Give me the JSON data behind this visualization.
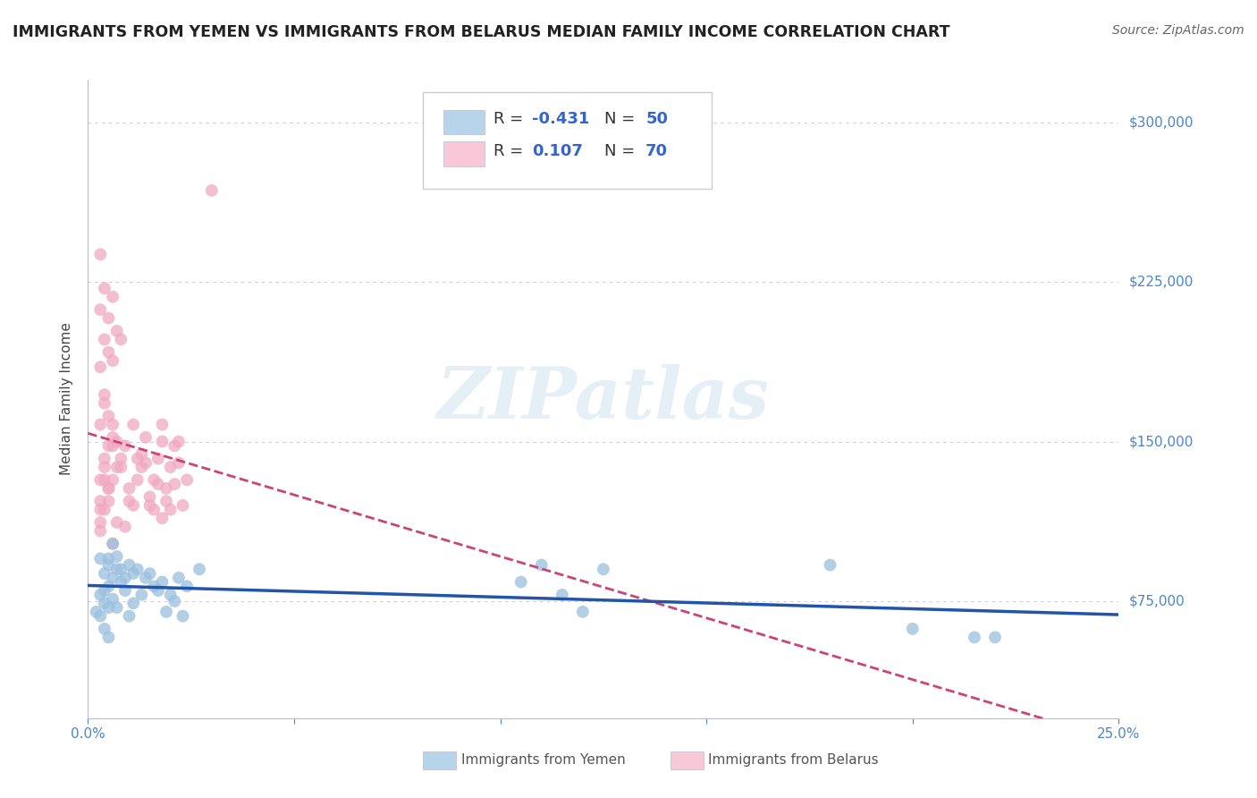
{
  "title": "IMMIGRANTS FROM YEMEN VS IMMIGRANTS FROM BELARUS MEDIAN FAMILY INCOME CORRELATION CHART",
  "source": "Source: ZipAtlas.com",
  "ylabel": "Median Family Income",
  "ytick_labels": [
    "$75,000",
    "$150,000",
    "$225,000",
    "$300,000"
  ],
  "ytick_values": [
    75000,
    150000,
    225000,
    300000
  ],
  "ylim": [
    20000,
    320000
  ],
  "xlim": [
    0.0,
    0.25
  ],
  "legend_r1": "R = -0.431",
  "legend_n1": "N = 50",
  "legend_r2": "R =  0.107",
  "legend_n2": "N = 70",
  "watermark": "ZIPatlas",
  "title_color": "#222222",
  "title_fontsize": 12.5,
  "source_color": "#666666",
  "source_fontsize": 10,
  "axis_color": "#4a86c8",
  "grid_color": "#ccccdd",
  "yemen_color": "#9abfde",
  "belarus_color": "#f0a8c0",
  "yemen_fill": "#b8d4ea",
  "belarus_fill": "#f8c8d8",
  "yemen_line_color": "#2255aa",
  "belarus_line_color": "#cc4477",
  "yemen_points": [
    [
      0.003,
      95000
    ],
    [
      0.004,
      88000
    ],
    [
      0.005,
      92000
    ],
    [
      0.003,
      78000
    ],
    [
      0.006,
      102000
    ],
    [
      0.005,
      82000
    ],
    [
      0.007,
      90000
    ],
    [
      0.004,
      74000
    ],
    [
      0.002,
      70000
    ],
    [
      0.005,
      95000
    ],
    [
      0.008,
      90000
    ],
    [
      0.006,
      86000
    ],
    [
      0.004,
      80000
    ],
    [
      0.003,
      68000
    ],
    [
      0.007,
      96000
    ],
    [
      0.005,
      72000
    ],
    [
      0.009,
      86000
    ],
    [
      0.01,
      92000
    ],
    [
      0.006,
      76000
    ],
    [
      0.004,
      62000
    ],
    [
      0.011,
      88000
    ],
    [
      0.008,
      84000
    ],
    [
      0.012,
      90000
    ],
    [
      0.009,
      80000
    ],
    [
      0.005,
      58000
    ],
    [
      0.007,
      72000
    ],
    [
      0.014,
      86000
    ],
    [
      0.016,
      82000
    ],
    [
      0.013,
      78000
    ],
    [
      0.01,
      68000
    ],
    [
      0.015,
      88000
    ],
    [
      0.018,
      84000
    ],
    [
      0.017,
      80000
    ],
    [
      0.011,
      74000
    ],
    [
      0.02,
      78000
    ],
    [
      0.022,
      86000
    ],
    [
      0.019,
      70000
    ],
    [
      0.024,
      82000
    ],
    [
      0.021,
      75000
    ],
    [
      0.027,
      90000
    ],
    [
      0.023,
      68000
    ],
    [
      0.11,
      92000
    ],
    [
      0.105,
      84000
    ],
    [
      0.115,
      78000
    ],
    [
      0.12,
      70000
    ],
    [
      0.125,
      90000
    ],
    [
      0.18,
      92000
    ],
    [
      0.22,
      58000
    ],
    [
      0.2,
      62000
    ],
    [
      0.215,
      58000
    ]
  ],
  "belarus_points": [
    [
      0.003,
      122000
    ],
    [
      0.003,
      118000
    ],
    [
      0.004,
      172000
    ],
    [
      0.003,
      185000
    ],
    [
      0.004,
      168000
    ],
    [
      0.003,
      158000
    ],
    [
      0.005,
      148000
    ],
    [
      0.004,
      138000
    ],
    [
      0.003,
      132000
    ],
    [
      0.005,
      128000
    ],
    [
      0.006,
      152000
    ],
    [
      0.004,
      142000
    ],
    [
      0.003,
      112000
    ],
    [
      0.005,
      162000
    ],
    [
      0.006,
      148000
    ],
    [
      0.004,
      132000
    ],
    [
      0.007,
      138000
    ],
    [
      0.005,
      122000
    ],
    [
      0.006,
      158000
    ],
    [
      0.003,
      108000
    ],
    [
      0.004,
      118000
    ],
    [
      0.007,
      150000
    ],
    [
      0.005,
      128000
    ],
    [
      0.008,
      142000
    ],
    [
      0.006,
      132000
    ],
    [
      0.007,
      112000
    ],
    [
      0.009,
      148000
    ],
    [
      0.008,
      138000
    ],
    [
      0.01,
      122000
    ],
    [
      0.006,
      102000
    ],
    [
      0.011,
      158000
    ],
    [
      0.009,
      110000
    ],
    [
      0.012,
      142000
    ],
    [
      0.01,
      128000
    ],
    [
      0.013,
      138000
    ],
    [
      0.011,
      120000
    ],
    [
      0.014,
      152000
    ],
    [
      0.012,
      132000
    ],
    [
      0.015,
      124000
    ],
    [
      0.013,
      144000
    ],
    [
      0.016,
      118000
    ],
    [
      0.014,
      140000
    ],
    [
      0.017,
      130000
    ],
    [
      0.015,
      120000
    ],
    [
      0.018,
      150000
    ],
    [
      0.016,
      132000
    ],
    [
      0.019,
      122000
    ],
    [
      0.017,
      142000
    ],
    [
      0.018,
      158000
    ],
    [
      0.018,
      114000
    ],
    [
      0.02,
      138000
    ],
    [
      0.019,
      128000
    ],
    [
      0.021,
      148000
    ],
    [
      0.02,
      118000
    ],
    [
      0.022,
      140000
    ],
    [
      0.021,
      130000
    ],
    [
      0.023,
      120000
    ],
    [
      0.022,
      150000
    ],
    [
      0.024,
      132000
    ],
    [
      0.03,
      268000
    ],
    [
      0.003,
      212000
    ],
    [
      0.004,
      198000
    ],
    [
      0.003,
      238000
    ],
    [
      0.004,
      222000
    ],
    [
      0.005,
      208000
    ],
    [
      0.006,
      218000
    ],
    [
      0.007,
      202000
    ],
    [
      0.008,
      198000
    ],
    [
      0.005,
      192000
    ],
    [
      0.006,
      188000
    ]
  ]
}
